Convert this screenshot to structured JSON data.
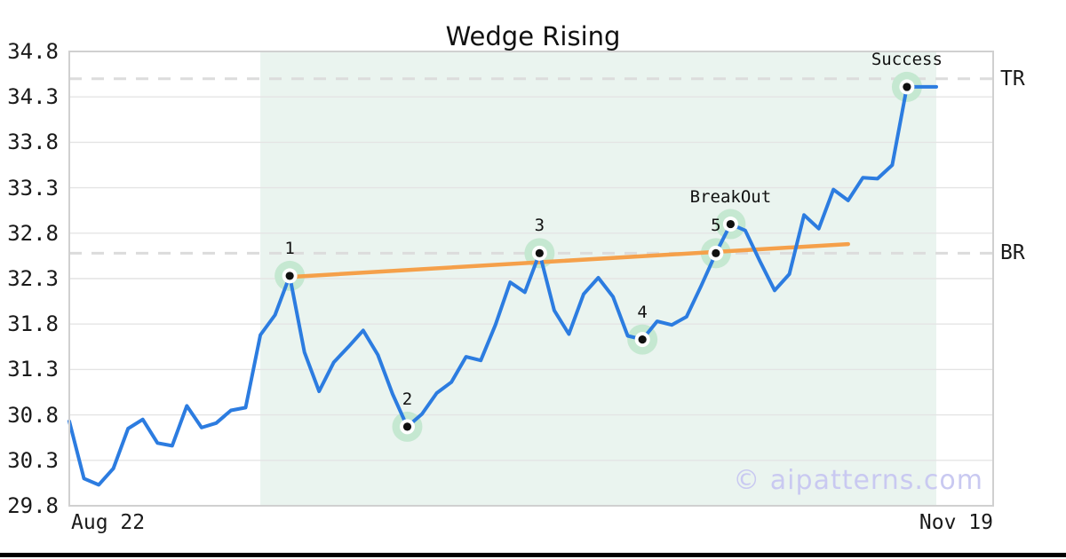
{
  "title": "Wedge Rising",
  "watermark": "© aipatterns.com",
  "axes": {
    "y_ticks": [
      "34.8",
      "34.3",
      "33.8",
      "33.3",
      "32.8",
      "32.3",
      "31.8",
      "31.3",
      "30.8",
      "30.3",
      "29.8"
    ],
    "y_min": 29.8,
    "y_max": 34.8,
    "x_start_label": "Aug 22",
    "x_end_label": "Nov 19"
  },
  "levels": {
    "tr_label": "TR",
    "br_label": "BR"
  },
  "colors": {
    "price_line": "#2c7ce0",
    "trendline": "#f5a04a",
    "pattern_zone": "#eaf4ef",
    "marker_halo": "#c5e8d1",
    "marker_ring": "#ffffff",
    "marker_dot": "#111111",
    "dashed_level": "#dcdcdc",
    "grid": "#e4e4e4",
    "plot_border": "#d0d0d0",
    "watermark_color": "#c9c9f1"
  },
  "chart_data": {
    "type": "line",
    "title": "Wedge Rising",
    "xlabel": "",
    "ylabel": "",
    "x_range_labels": [
      "Aug 22",
      "Nov 19"
    ],
    "ylim": [
      29.8,
      34.8
    ],
    "y_tick_step": 0.5,
    "grid": true,
    "legend": "none",
    "values": [
      30.73,
      30.1,
      30.03,
      30.21,
      30.65,
      30.75,
      30.49,
      30.46,
      30.9,
      30.66,
      30.71,
      30.85,
      30.88,
      31.68,
      31.9,
      32.33,
      31.49,
      31.06,
      31.38,
      31.55,
      31.73,
      31.46,
      31.03,
      30.67,
      30.81,
      31.04,
      31.16,
      31.44,
      31.4,
      31.79,
      32.26,
      32.15,
      32.58,
      31.95,
      31.69,
      32.13,
      32.31,
      32.1,
      31.67,
      31.63,
      31.83,
      31.79,
      31.88,
      32.22,
      32.58,
      32.9,
      32.83,
      32.49,
      32.17,
      32.35,
      33.0,
      32.85,
      33.28,
      33.16,
      33.41,
      33.4,
      33.55,
      34.41,
      34.41,
      34.41
    ],
    "annotations": [
      {
        "label": "1",
        "index": 15,
        "value": 32.33
      },
      {
        "label": "2",
        "index": 23,
        "value": 30.67
      },
      {
        "label": "3",
        "index": 32,
        "value": 32.58
      },
      {
        "label": "4",
        "index": 39,
        "value": 31.63
      },
      {
        "label": "5",
        "index": 44,
        "value": 32.58
      },
      {
        "label": "BreakOut",
        "index": 45,
        "value": 32.9
      },
      {
        "label": "Success",
        "index": 57,
        "value": 34.41
      }
    ],
    "levels": [
      {
        "label": "TR",
        "value": 34.5
      },
      {
        "label": "BR",
        "value": 32.58
      }
    ],
    "trendline": {
      "start_index": 15.2,
      "start_value": 32.32,
      "end_index": 53,
      "end_value": 32.68
    },
    "pattern_zone": {
      "start_index": 13,
      "end_index": 59
    }
  }
}
